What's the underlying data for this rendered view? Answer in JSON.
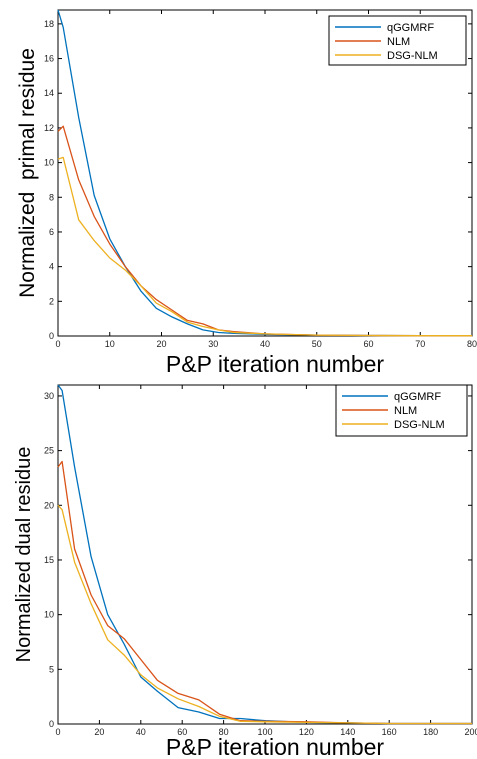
{
  "chart_data": [
    {
      "type": "line",
      "title": "",
      "xlabel": "P&P iteration number",
      "ylabel": "Normalized  primal residue",
      "xlim": [
        0,
        80
      ],
      "ylim": [
        0,
        18.8
      ],
      "xticks": [
        0,
        10,
        20,
        30,
        40,
        50,
        60,
        70,
        80
      ],
      "yticks": [
        0,
        2,
        4,
        6,
        8,
        10,
        12,
        14,
        16,
        18
      ],
      "legend_position": "top-right",
      "series": [
        {
          "name": "qGGMRF",
          "color": "#0072BD",
          "x": [
            0,
            1,
            4,
            7,
            10,
            13,
            16,
            19,
            22,
            25,
            28,
            31,
            34,
            40,
            50,
            60,
            70,
            80
          ],
          "y": [
            18.8,
            17.8,
            12.6,
            8.1,
            5.6,
            4.0,
            2.6,
            1.6,
            1.1,
            0.7,
            0.35,
            0.2,
            0.15,
            0.1,
            0.05,
            0.03,
            0.02,
            0.02
          ]
        },
        {
          "name": "NLM",
          "color": "#D95319",
          "x": [
            0,
            1,
            4,
            7,
            10,
            13,
            16,
            19,
            22,
            25,
            28,
            31,
            34,
            40,
            50,
            60,
            70,
            80
          ],
          "y": [
            11.8,
            12.1,
            9.0,
            6.9,
            5.3,
            4.0,
            2.9,
            2.1,
            1.5,
            0.9,
            0.7,
            0.35,
            0.25,
            0.12,
            0.05,
            0.03,
            0.02,
            0.02
          ]
        },
        {
          "name": "DSG-NLM",
          "color": "#EDB120",
          "x": [
            0,
            1,
            4,
            7,
            10,
            13,
            16,
            19,
            22,
            25,
            28,
            31,
            34,
            40,
            50,
            60,
            70,
            80
          ],
          "y": [
            10.2,
            10.3,
            6.7,
            5.5,
            4.5,
            3.8,
            2.9,
            1.9,
            1.4,
            0.8,
            0.55,
            0.35,
            0.2,
            0.12,
            0.05,
            0.03,
            0.02,
            0.02
          ]
        }
      ]
    },
    {
      "type": "line",
      "title": "",
      "xlabel": "P&P iteration number",
      "ylabel": "Normalized dual residue",
      "xlim": [
        0,
        200
      ],
      "ylim": [
        0,
        31
      ],
      "xticks": [
        0,
        20,
        40,
        60,
        80,
        100,
        120,
        140,
        160,
        180,
        200
      ],
      "yticks": [
        0,
        5,
        10,
        15,
        20,
        25,
        30
      ],
      "legend_position": "top-right",
      "series": [
        {
          "name": "qGGMRF",
          "color": "#0072BD",
          "x": [
            0,
            2,
            8,
            16,
            24,
            32,
            40,
            48,
            58,
            68,
            78,
            88,
            100,
            120,
            140,
            160,
            180,
            200
          ],
          "y": [
            31,
            30.5,
            23.5,
            15.3,
            10.0,
            7.3,
            4.3,
            3.0,
            1.5,
            1.1,
            0.5,
            0.5,
            0.3,
            0.15,
            0.1,
            0.05,
            0.05,
            0.05
          ]
        },
        {
          "name": "NLM",
          "color": "#D95319",
          "x": [
            0,
            2,
            8,
            16,
            24,
            32,
            40,
            48,
            58,
            68,
            78,
            88,
            100,
            120,
            140,
            160,
            180,
            200
          ],
          "y": [
            23.5,
            24.0,
            16.0,
            11.8,
            9.0,
            7.8,
            5.9,
            4.0,
            2.8,
            2.2,
            0.9,
            0.3,
            0.25,
            0.2,
            0.1,
            0.05,
            0.05,
            0.05
          ]
        },
        {
          "name": "DSG-NLM",
          "color": "#EDB120",
          "x": [
            0,
            2,
            8,
            16,
            24,
            32,
            40,
            48,
            58,
            68,
            78,
            88,
            100,
            120,
            140,
            160,
            180,
            200
          ],
          "y": [
            20.0,
            19.6,
            14.8,
            11.0,
            7.7,
            6.3,
            4.5,
            3.3,
            2.3,
            1.6,
            0.7,
            0.25,
            0.2,
            0.15,
            0.1,
            0.05,
            0.05,
            0.05
          ]
        }
      ]
    }
  ]
}
